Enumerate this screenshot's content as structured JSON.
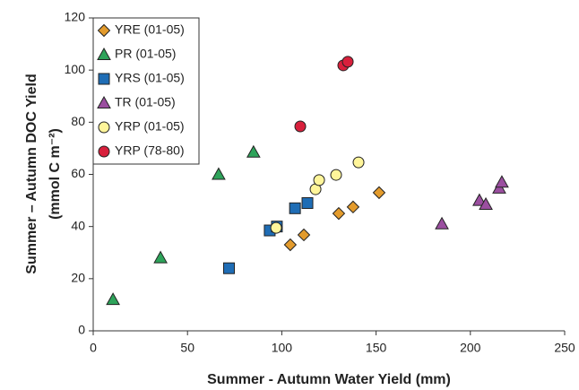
{
  "chart_data": {
    "type": "scatter",
    "x_label": "Summer - Autumn Water Yield (mm)",
    "y_label": [
      "Summer – Autumn DOC Yield",
      "(mmol C m⁻²)"
    ],
    "xlim": [
      0,
      250
    ],
    "xticks": [
      0,
      50,
      100,
      150,
      200,
      250
    ],
    "ylim": [
      0,
      120
    ],
    "yticks": [
      0,
      20,
      40,
      60,
      80,
      100,
      120
    ],
    "grid": false,
    "legend": "upper left",
    "series": [
      {
        "name": "YRE (01-05)",
        "color": "#e39b2c",
        "marker": "diamond",
        "x": [
          104.5,
          111.7,
          130.2,
          137.8,
          151.6
        ],
        "values": [
          33,
          36.8,
          45,
          47.5,
          53
        ]
      },
      {
        "name": "PR (01-05)",
        "color": "#2ea35a",
        "marker": "triangle",
        "x": [
          10.5,
          35.7,
          66.5,
          85
        ],
        "values": [
          12,
          28,
          60,
          68.5
        ]
      },
      {
        "name": "YRS (01-05)",
        "color": "#1f6db5",
        "marker": "square",
        "x": [
          72,
          93.6,
          97.4,
          107,
          113.6
        ],
        "values": [
          24,
          38.5,
          40,
          47,
          49
        ]
      },
      {
        "name": "TR (01-05)",
        "color": "#9b4fa0",
        "marker": "triangle",
        "x": [
          184.9,
          204.8,
          208.2,
          215.3,
          216.7
        ],
        "values": [
          41,
          50,
          48.5,
          54.7,
          57
        ]
      },
      {
        "name": "YRP (01-05)",
        "color": "#fff59a",
        "marker": "circle",
        "x": [
          97,
          117.9,
          119.8,
          128.8,
          140.7
        ],
        "values": [
          39.5,
          54.3,
          57.8,
          59.8,
          64.6
        ]
      },
      {
        "name": "YRP (78-80)",
        "color": "#d8203c",
        "marker": "circle",
        "x": [
          109.8,
          132.6,
          135
        ],
        "values": [
          78.4,
          101.8,
          103.2
        ]
      }
    ]
  }
}
